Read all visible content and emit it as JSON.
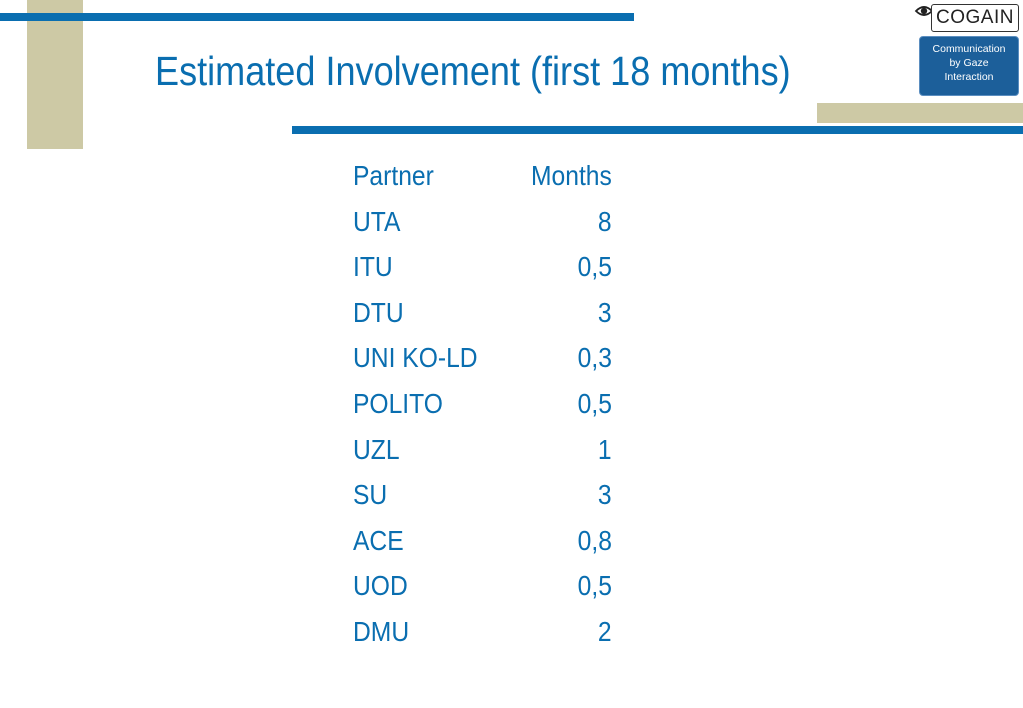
{
  "slide": {
    "title": "Estimated Involvement (first 18 months)"
  },
  "logo": {
    "wordmark": "COGAIN",
    "tagline_1": "Communication",
    "tagline_2": "by Gaze",
    "tagline_3": "Interaction"
  },
  "table": {
    "headers": {
      "partner": "Partner",
      "months": "Months"
    },
    "rows": [
      {
        "partner": "UTA",
        "months": "8"
      },
      {
        "partner": "ITU",
        "months": "0,5"
      },
      {
        "partner": "DTU",
        "months": "3"
      },
      {
        "partner": "UNI KO-LD",
        "months": "0,3"
      },
      {
        "partner": "POLITO",
        "months": "0,5"
      },
      {
        "partner": "UZL",
        "months": "1"
      },
      {
        "partner": "SU",
        "months": "3"
      },
      {
        "partner": "ACE",
        "months": "0,8"
      },
      {
        "partner": "UOD",
        "months": "0,5"
      },
      {
        "partner": "DMU",
        "months": "2"
      }
    ]
  },
  "colors": {
    "accent_blue": "#0a6eb0",
    "tan": "#cdc9a5",
    "logo_blue": "#1c5f9a"
  }
}
